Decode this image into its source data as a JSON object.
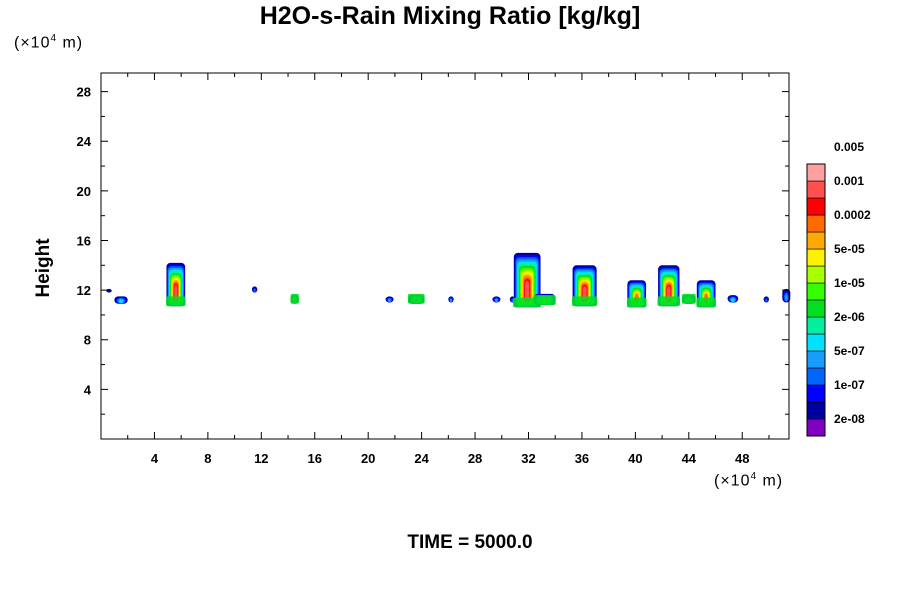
{
  "chart_data": {
    "type": "contour",
    "title": "H2O-s-Rain Mixing Ratio [kg/kg]",
    "ylabel": "Height",
    "xlabel": "",
    "x_unit_prefix": "(×10",
    "x_unit_exp": "4",
    "x_unit_suffix": " m)",
    "y_unit_prefix": "(×10",
    "y_unit_exp": "4",
    "y_unit_suffix": " m)",
    "xlim": [
      0,
      51.5
    ],
    "ylim": [
      0,
      29.5
    ],
    "x_ticks": [
      4,
      8,
      12,
      16,
      20,
      24,
      28,
      32,
      36,
      40,
      44,
      48
    ],
    "y_ticks": [
      4,
      8,
      12,
      16,
      20,
      24,
      28
    ],
    "colorbar": {
      "colors": [
        "#7f00bf",
        "#0000a0",
        "#0000ff",
        "#0066ff",
        "#1a9cff",
        "#00e0ff",
        "#00f0a0",
        "#00e020",
        "#33ff00",
        "#a8ff00",
        "#fff200",
        "#ffaa00",
        "#ff6a00",
        "#ff0000",
        "#ff5050",
        "#ffa0a0"
      ],
      "labels": [
        "2e-08",
        "1e-07",
        "5e-07",
        "2e-06",
        "1e-05",
        "5e-05",
        "0.0002",
        "0.001",
        "0.005"
      ]
    },
    "cells": [
      {
        "x": 0.6,
        "bottom": 11.8,
        "top": 12.1,
        "half_width": 0.2,
        "level": 1
      },
      {
        "x": 1.5,
        "bottom": 10.9,
        "top": 11.5,
        "half_width": 0.5,
        "level": 5
      },
      {
        "x": 5.6,
        "bottom": 10.7,
        "top": 14.2,
        "half_width": 0.7,
        "level": 14
      },
      {
        "x": 11.5,
        "bottom": 11.8,
        "top": 12.3,
        "half_width": 0.2,
        "level": 3
      },
      {
        "x": 14.5,
        "bottom": 10.9,
        "top": 11.6,
        "half_width": 0.3,
        "level": 7
      },
      {
        "x": 21.6,
        "bottom": 11.0,
        "top": 11.5,
        "half_width": 0.3,
        "level": 4
      },
      {
        "x": 23.6,
        "bottom": 10.9,
        "top": 11.6,
        "half_width": 0.6,
        "level": 7
      },
      {
        "x": 26.2,
        "bottom": 11.0,
        "top": 11.5,
        "half_width": 0.2,
        "level": 4
      },
      {
        "x": 29.6,
        "bottom": 11.0,
        "top": 11.5,
        "half_width": 0.3,
        "level": 4
      },
      {
        "x": 30.8,
        "bottom": 11.0,
        "top": 11.5,
        "half_width": 0.2,
        "level": 3
      },
      {
        "x": 31.9,
        "bottom": 10.6,
        "top": 15.0,
        "half_width": 1.0,
        "level": 14
      },
      {
        "x": 33.2,
        "bottom": 10.8,
        "top": 11.7,
        "half_width": 0.8,
        "level": 9
      },
      {
        "x": 36.2,
        "bottom": 10.7,
        "top": 14.0,
        "half_width": 0.9,
        "level": 14
      },
      {
        "x": 40.1,
        "bottom": 10.6,
        "top": 12.8,
        "half_width": 0.7,
        "level": 12
      },
      {
        "x": 42.5,
        "bottom": 10.7,
        "top": 14.0,
        "half_width": 0.8,
        "level": 14
      },
      {
        "x": 44.0,
        "bottom": 10.9,
        "top": 11.6,
        "half_width": 0.5,
        "level": 7
      },
      {
        "x": 45.3,
        "bottom": 10.6,
        "top": 12.8,
        "half_width": 0.7,
        "level": 12
      },
      {
        "x": 47.3,
        "bottom": 11.0,
        "top": 11.6,
        "half_width": 0.4,
        "level": 5
      },
      {
        "x": 49.8,
        "bottom": 11.0,
        "top": 11.5,
        "half_width": 0.2,
        "level": 3
      },
      {
        "x": 51.3,
        "bottom": 11.0,
        "top": 12.1,
        "half_width": 0.3,
        "level": 4
      }
    ]
  },
  "footer": {
    "time_label": "TIME = 5000.0"
  }
}
